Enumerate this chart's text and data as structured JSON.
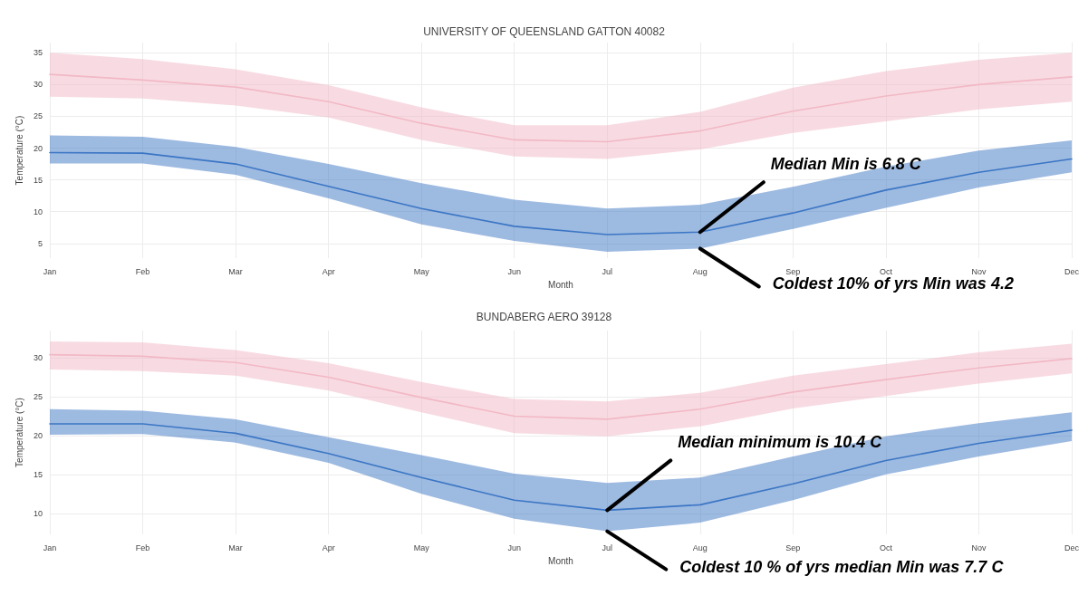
{
  "chart_data": [
    {
      "type": "line",
      "title": "UNIVERSITY OF QUEENSLAND GATTON 40082",
      "xlabel": "Month",
      "ylabel": "Temperature (°C)",
      "categories": [
        "Jan",
        "Feb",
        "Mar",
        "Apr",
        "May",
        "Jun",
        "Jul",
        "Aug",
        "Sep",
        "Oct",
        "Nov",
        "Dec"
      ],
      "series": [
        {
          "color": "#f2b8c6",
          "values": [
            31.6,
            30.7,
            29.6,
            27.3,
            23.9,
            21.3,
            21.0,
            22.7,
            25.8,
            28.2,
            30.0,
            31.2
          ],
          "lower": [
            28.1,
            27.8,
            26.7,
            24.8,
            21.3,
            18.7,
            18.3,
            19.8,
            22.4,
            24.2,
            26.1,
            27.3
          ],
          "upper": [
            35.0,
            34.0,
            32.4,
            29.9,
            26.4,
            23.6,
            23.6,
            25.7,
            29.5,
            32.1,
            33.9,
            35.0
          ]
        },
        {
          "color": "#3b76c4",
          "values": [
            19.3,
            19.2,
            17.5,
            14.0,
            10.5,
            7.7,
            6.4,
            6.8,
            9.8,
            13.4,
            16.2,
            18.3
          ],
          "lower": [
            17.6,
            17.6,
            15.8,
            12.1,
            8.0,
            5.4,
            3.7,
            4.2,
            7.3,
            10.6,
            13.8,
            16.2
          ],
          "upper": [
            22.0,
            21.8,
            20.2,
            17.5,
            14.5,
            11.9,
            10.5,
            11.1,
            13.9,
            17.1,
            19.6,
            21.2
          ]
        }
      ],
      "ylim": [
        2.7,
        36.6
      ],
      "yticks": [
        5,
        10,
        15,
        20,
        25,
        30,
        35
      ],
      "grid": true,
      "marker": "none",
      "annotations": [
        {
          "text": "Median Min is 6.8 C",
          "x": "Aug",
          "y": 6.8
        },
        {
          "text": "Coldest 10% of yrs Min was 4.2",
          "x": "Aug",
          "y": 4.2
        }
      ]
    },
    {
      "type": "line",
      "title": "BUNDABERG AERO 39128",
      "xlabel": "Month",
      "ylabel": "Temperature (°C)",
      "categories": [
        "Jan",
        "Feb",
        "Mar",
        "Apr",
        "May",
        "Jun",
        "Jul",
        "Aug",
        "Sep",
        "Oct",
        "Nov",
        "Dec"
      ],
      "series": [
        {
          "color": "#f2b8c6",
          "values": [
            30.4,
            30.2,
            29.4,
            27.5,
            24.9,
            22.5,
            22.1,
            23.4,
            25.6,
            27.2,
            28.7,
            29.9
          ],
          "lower": [
            28.5,
            28.3,
            27.7,
            25.8,
            23.0,
            20.3,
            19.9,
            21.2,
            23.5,
            25.1,
            26.7,
            28.0
          ],
          "upper": [
            32.1,
            32.0,
            31.0,
            29.3,
            26.9,
            24.7,
            24.4,
            25.5,
            27.7,
            29.2,
            30.7,
            31.8
          ]
        },
        {
          "color": "#3b76c4",
          "values": [
            21.5,
            21.5,
            20.3,
            17.7,
            14.6,
            11.7,
            10.4,
            11.1,
            13.8,
            16.8,
            19.0,
            20.7
          ],
          "lower": [
            20.1,
            20.2,
            19.1,
            16.5,
            12.5,
            9.3,
            7.7,
            8.8,
            11.7,
            15.0,
            17.3,
            19.3
          ],
          "upper": [
            23.4,
            23.2,
            22.1,
            19.8,
            17.5,
            15.1,
            13.9,
            14.6,
            17.3,
            19.9,
            21.6,
            23.0
          ]
        }
      ],
      "ylim": [
        7.3,
        33.5
      ],
      "yticks": [
        10,
        15,
        20,
        25,
        30
      ],
      "grid": true,
      "marker": "none",
      "annotations": [
        {
          "text": "Median minimum is 10.4 C",
          "x": "Jul",
          "y": 10.4
        },
        {
          "text": "Coldest 10 % of yrs median Min was 7.7 C",
          "x": "Jul",
          "y": 7.7
        }
      ]
    }
  ]
}
